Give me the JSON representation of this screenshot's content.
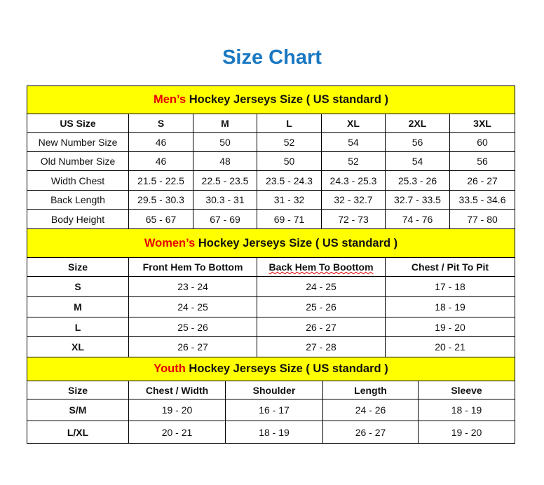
{
  "title": "Size Chart",
  "colors": {
    "title": "#1a78c2",
    "section_bg": "#ffff00",
    "section_accent": "#e60000"
  },
  "men": {
    "title_accent": "Men’s",
    "title_rest": " Hockey Jerseys Size ( US standard )",
    "headers": [
      "US Size",
      "S",
      "M",
      "L",
      "XL",
      "2XL",
      "3XL"
    ],
    "rows": [
      [
        "New Number Size",
        "46",
        "50",
        "52",
        "54",
        "56",
        "60"
      ],
      [
        "Old Number Size",
        "46",
        "48",
        "50",
        "52",
        "54",
        "56"
      ],
      [
        "Width Chest",
        "21.5 - 22.5",
        "22.5 - 23.5",
        "23.5 - 24.3",
        "24.3 - 25.3",
        "25.3 - 26",
        "26 - 27"
      ],
      [
        "Back Length",
        "29.5 - 30.3",
        "30.3 - 31",
        "31 - 32",
        "32 - 32.7",
        "32.7 - 33.5",
        "33.5 - 34.6"
      ],
      [
        "Body Height",
        "65 - 67",
        "67 - 69",
        "69 - 71",
        "72 - 73",
        "74 - 76",
        "77 - 80"
      ]
    ]
  },
  "women": {
    "title_accent": "Women’s",
    "title_rest": " Hockey Jerseys Size ( US standard )",
    "headers": [
      "Size",
      "Front Hem To Bottom",
      "Back Hem To Boottom",
      "Chest / Pit To Pit"
    ],
    "rows": [
      [
        "S",
        "23 - 24",
        "24 - 25",
        "17 - 18"
      ],
      [
        "M",
        "24 - 25",
        "25 - 26",
        "18 - 19"
      ],
      [
        "L",
        "25 - 26",
        "26 - 27",
        "19 - 20"
      ],
      [
        "XL",
        "26 - 27",
        "27 - 28",
        "20 - 21"
      ]
    ]
  },
  "youth": {
    "title_accent": "Youth",
    "title_rest": " Hockey Jerseys Size ( US standard )",
    "headers": [
      "Size",
      "Chest / Width",
      "Shoulder",
      "Length",
      "Sleeve"
    ],
    "rows": [
      [
        "S/M",
        "19 - 20",
        "16 - 17",
        "24 - 26",
        "18 - 19"
      ],
      [
        "L/XL",
        "20 - 21",
        "18 - 19",
        "26 - 27",
        "19 - 20"
      ]
    ]
  }
}
